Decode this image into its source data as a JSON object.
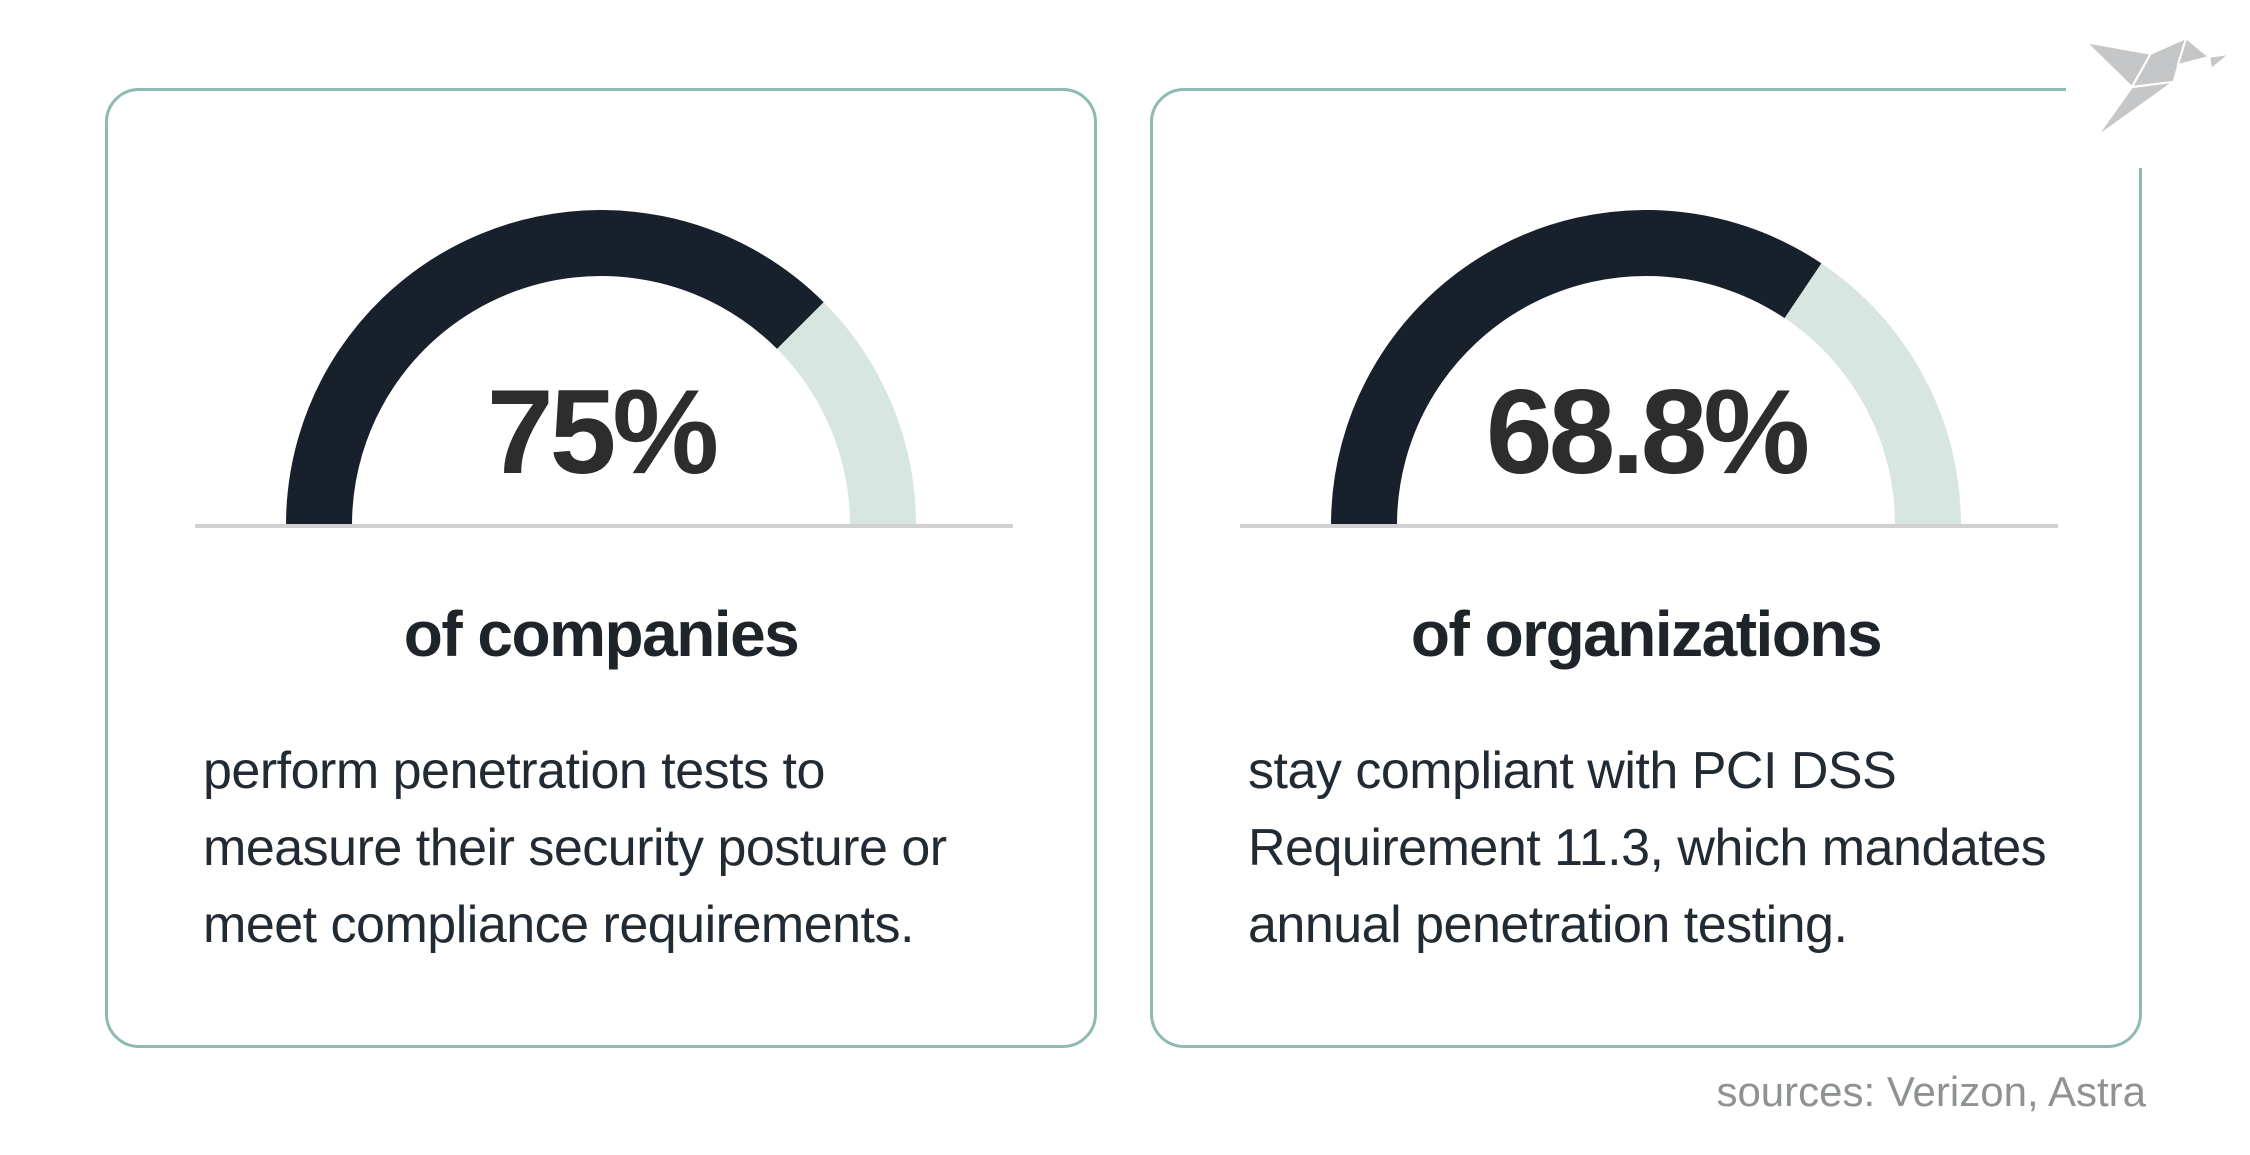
{
  "page": {
    "sources_label": "sources: Verizon, Astra"
  },
  "logo": {
    "name": "origami-bird-logo",
    "color": "#c5c6c7"
  },
  "colors": {
    "card_border": "#8dbab3",
    "gauge_filled": "#18212b",
    "gauge_empty": "#d7e6e1",
    "baseline_rule": "#d1d1d1",
    "percent_text": "#2d2d2d",
    "headline_text": "#1e242a",
    "body_text": "#222b33",
    "sources_text": "#8f9293"
  },
  "cards": [
    {
      "percent": "75%",
      "headline": "of companies",
      "lines": [
        "perform penetration tests to",
        "measure their security posture or",
        "meet compliance requirements."
      ]
    },
    {
      "percent": "68.8%",
      "headline": "of organizations",
      "lines": [
        "stay compliant with PCI DSS",
        "Requirement 11.3, which mandates",
        "annual penetration testing."
      ]
    }
  ],
  "chart_data": [
    {
      "type": "gauge",
      "title": "of companies",
      "value": 75,
      "max": 100,
      "unit": "%",
      "label": "75%",
      "description": "perform penetration tests to measure their security posture or meet compliance requirements.",
      "filled_color": "#18212b",
      "empty_color": "#d7e6e1",
      "shape": "semicircle",
      "source": "Verizon"
    },
    {
      "type": "gauge",
      "title": "of organizations",
      "value": 68.8,
      "max": 100,
      "unit": "%",
      "label": "68.8%",
      "description": "stay compliant with PCI DSS Requirement 11.3, which mandates annual penetration testing.",
      "filled_color": "#18212b",
      "empty_color": "#d7e6e1",
      "shape": "semicircle",
      "source": "Astra"
    }
  ]
}
